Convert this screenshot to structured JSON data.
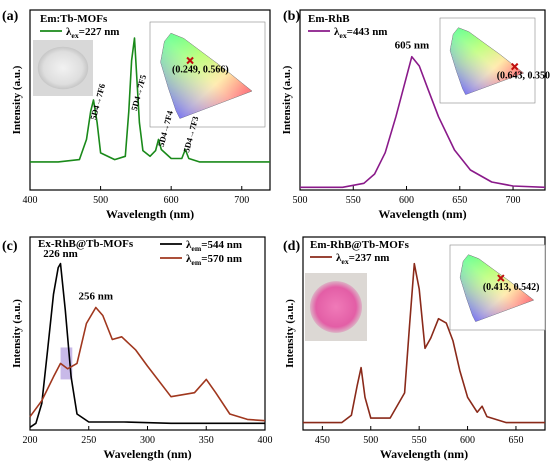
{
  "chart_data": [
    {
      "panel_label": "(a)",
      "type": "line",
      "legend_title": "Em:Tb-MOFs",
      "series": [
        {
          "name": "λex=227 nm",
          "color": "#1a8a1a"
        }
      ],
      "x": [
        400,
        440,
        470,
        480,
        486,
        490,
        495,
        500,
        520,
        535,
        540,
        544,
        548,
        555,
        560,
        570,
        578,
        582,
        586,
        600,
        615,
        620,
        625,
        640,
        680,
        740
      ],
      "y": [
        0.25,
        0.25,
        0.27,
        0.45,
        0.7,
        0.8,
        0.6,
        0.33,
        0.27,
        0.3,
        0.7,
        1.15,
        1.35,
        0.6,
        0.35,
        0.3,
        0.35,
        0.45,
        0.36,
        0.28,
        0.28,
        0.36,
        0.28,
        0.25,
        0.25,
        0.25
      ],
      "xlim": [
        400,
        740
      ],
      "ylim": [
        0,
        1.6
      ],
      "xticks": [
        "400",
        "500",
        "600",
        "700"
      ],
      "xlabel": "Wavelength (nm)",
      "ylabel": "Intensity (a.u.)",
      "annotations": [
        "5D4→7F6",
        "5D4→7F5",
        "5D4→7F4",
        "5D4→7F3"
      ],
      "cie": {
        "coord": "(0.249, 0.566)",
        "x": 0.249,
        "y": 0.566
      },
      "inset_photo": "white-powder"
    },
    {
      "panel_label": "(b)",
      "type": "line",
      "legend_title": "Em-RhB",
      "series": [
        {
          "name": "λex=443 nm",
          "color": "#8a1a8a"
        }
      ],
      "x": [
        500,
        540,
        560,
        570,
        580,
        590,
        600,
        605,
        612,
        620,
        630,
        645,
        660,
        680,
        700,
        730
      ],
      "y": [
        0.02,
        0.02,
        0.05,
        0.12,
        0.28,
        0.55,
        0.85,
        1.0,
        0.93,
        0.76,
        0.55,
        0.3,
        0.15,
        0.06,
        0.03,
        0.02
      ],
      "xlim": [
        500,
        730
      ],
      "ylim": [
        0,
        1.35
      ],
      "xticks": [
        "500",
        "550",
        "600",
        "650",
        "700"
      ],
      "xlabel": "Wavelength (nm)",
      "ylabel": "Intensity (a.u.)",
      "annotations": [
        "605 nm"
      ],
      "cie": {
        "coord": "(0.643, 0.350)",
        "x": 0.643,
        "y": 0.35
      }
    },
    {
      "panel_label": "(c)",
      "type": "line",
      "legend_title": "Ex-RhB@Tb-MOFs",
      "series": [
        {
          "name": "λem=544 nm",
          "color": "#000000",
          "x": [
            200,
            205,
            210,
            215,
            220,
            224,
            226,
            230,
            235,
            240,
            250,
            280,
            320,
            360,
            400
          ],
          "y": [
            0.02,
            0.05,
            0.2,
            0.6,
            1.02,
            1.22,
            1.25,
            0.9,
            0.4,
            0.12,
            0.06,
            0.06,
            0.05,
            0.05,
            0.05
          ]
        },
        {
          "name": "λem=570 nm",
          "color": "#a0371e",
          "x": [
            200,
            210,
            220,
            226,
            232,
            240,
            248,
            256,
            262,
            270,
            278,
            290,
            300,
            320,
            340,
            350,
            358,
            370,
            385,
            400
          ],
          "y": [
            0.1,
            0.22,
            0.4,
            0.5,
            0.46,
            0.5,
            0.8,
            0.92,
            0.86,
            0.68,
            0.7,
            0.6,
            0.48,
            0.25,
            0.28,
            0.38,
            0.28,
            0.12,
            0.08,
            0.07
          ]
        }
      ],
      "xlim": [
        200,
        400
      ],
      "ylim": [
        0,
        1.45
      ],
      "xticks": [
        "200",
        "250",
        "300",
        "350",
        "400"
      ],
      "xlabel": "Wavelength (nm)",
      "ylabel": "Intensity (a.u.)",
      "annotations": [
        "226 nm",
        "256 nm"
      ]
    },
    {
      "panel_label": "(d)",
      "type": "line",
      "legend_title": "Em-RhB@Tb-MOFs",
      "series": [
        {
          "name": "λex=237 nm",
          "color": "#8a2a1a"
        }
      ],
      "x": [
        430,
        470,
        480,
        486,
        490,
        494,
        500,
        520,
        535,
        540,
        545,
        550,
        556,
        562,
        570,
        578,
        585,
        592,
        600,
        610,
        615,
        620,
        640,
        680
      ],
      "y": [
        0.05,
        0.05,
        0.1,
        0.3,
        0.42,
        0.22,
        0.08,
        0.08,
        0.25,
        0.7,
        1.12,
        0.95,
        0.55,
        0.62,
        0.75,
        0.72,
        0.6,
        0.4,
        0.22,
        0.12,
        0.16,
        0.09,
        0.05,
        0.05
      ],
      "xlim": [
        430,
        680
      ],
      "ylim": [
        0,
        1.3
      ],
      "xticks": [
        "450",
        "500",
        "550",
        "600",
        "650"
      ],
      "xlabel": "Wavelength (nm)",
      "ylabel": "Intensity (a.u.)",
      "cie": {
        "coord": "(0.413, 0.542)",
        "x": 0.413,
        "y": 0.542
      },
      "inset_photo": "pink-powder"
    }
  ]
}
